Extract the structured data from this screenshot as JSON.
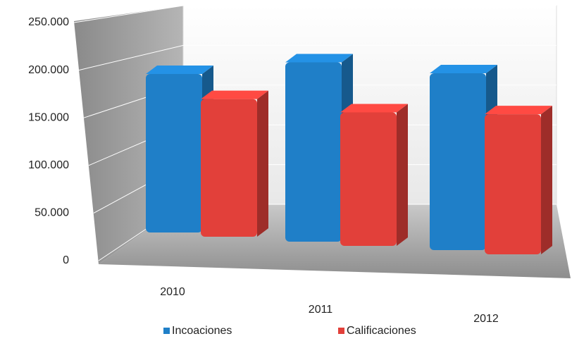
{
  "chart_data": {
    "type": "bar3d",
    "categories": [
      "2010",
      "2011",
      "2012"
    ],
    "series": [
      {
        "name": "Incoaciones",
        "color": "#1f7fc8",
        "values": [
          190000,
          215000,
          212000
        ]
      },
      {
        "name": "Calificaciones",
        "color": "#e2403a",
        "values": [
          165000,
          160000,
          168000
        ]
      }
    ],
    "ylim": [
      0,
      250000
    ],
    "yticks": [
      0,
      {
        "value": 50000,
        "label": "50.000"
      },
      {
        "value": 100000,
        "label": "100.000"
      },
      {
        "value": 150000,
        "label": "150.000"
      },
      {
        "value": 200000,
        "label": "200.000"
      },
      {
        "value": 250000,
        "label": "250.000"
      }
    ],
    "grid": true
  }
}
